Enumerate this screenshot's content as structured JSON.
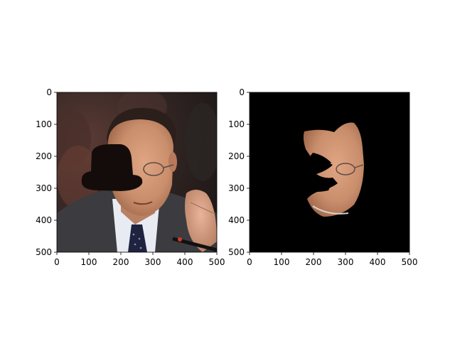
{
  "figure": {
    "panels": [
      {
        "id": "left",
        "image": "face-photo-with-occlusion",
        "x_ticks": [
          "0",
          "100",
          "200",
          "300",
          "400",
          "500"
        ],
        "y_ticks": [
          "0",
          "100",
          "200",
          "300",
          "400",
          "500"
        ]
      },
      {
        "id": "right",
        "image": "face-segmentation-mask",
        "x_ticks": [
          "0",
          "100",
          "200",
          "300",
          "400",
          "500"
        ],
        "y_ticks": [
          "0",
          "100",
          "200",
          "300",
          "400",
          "500"
        ]
      }
    ],
    "tick_values": [
      0,
      100,
      200,
      300,
      400,
      500
    ],
    "axis_range": [
      0,
      500
    ],
    "colors": {
      "mask_background": "#000000",
      "occluder": "#140c0a",
      "skin": "#c98e6c",
      "suit": "#3b3b40",
      "shirt": "#e8ebf2",
      "hair": "#2a1f1a",
      "background_left": "#3a2b28"
    }
  }
}
